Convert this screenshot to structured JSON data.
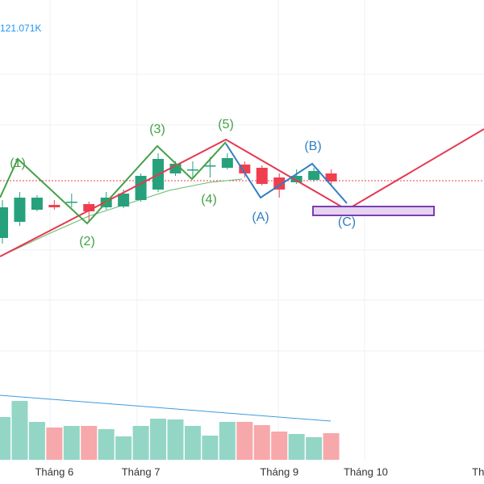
{
  "chart_data": {
    "type": "candlestick",
    "volume_label": "121.071K",
    "ylim": [
      0,
      600
    ],
    "vlim": [
      0,
      100
    ],
    "up_color": "#26a17b",
    "down_color": "#ef3f4f",
    "volume_up_color": "#93d6c6",
    "volume_down_color": "#f7a8aa",
    "open": [
      305,
      325,
      340,
      346,
      350,
      347,
      343,
      344,
      352,
      365,
      385,
      390,
      395,
      392,
      396,
      392,
      380,
      374,
      377,
      385
    ],
    "close": [
      343,
      355,
      355,
      343,
      350,
      338,
      355,
      360,
      382,
      403,
      397,
      390,
      395,
      404,
      385,
      372,
      365,
      382,
      388,
      375
    ],
    "high": [
      352,
      362,
      358,
      352,
      360,
      350,
      362,
      365,
      385,
      410,
      400,
      400,
      405,
      410,
      400,
      395,
      385,
      390,
      392,
      390
    ],
    "low": [
      298,
      320,
      338,
      340,
      343,
      325,
      340,
      342,
      350,
      362,
      382,
      380,
      380,
      390,
      380,
      370,
      355,
      372,
      375,
      370
    ],
    "volume": [
      53,
      73,
      47,
      40,
      42,
      42,
      38,
      29,
      42,
      51,
      50,
      42,
      30,
      47,
      47,
      43,
      35,
      32,
      28,
      33
    ],
    "xticks": [
      {
        "value": 3,
        "label": "Tháng 6"
      },
      {
        "value": 8,
        "label": "Tháng 7"
      },
      {
        "value": 16,
        "label": "Tháng 9"
      },
      {
        "value": 21,
        "label": "Tháng 10"
      },
      {
        "value": 28,
        "label": "Tháng"
      }
    ],
    "wave_labels": [
      "(1)",
      "(2)",
      "(3)",
      "(4)",
      "(5)",
      "(A)",
      "(B)",
      "(C)"
    ]
  }
}
